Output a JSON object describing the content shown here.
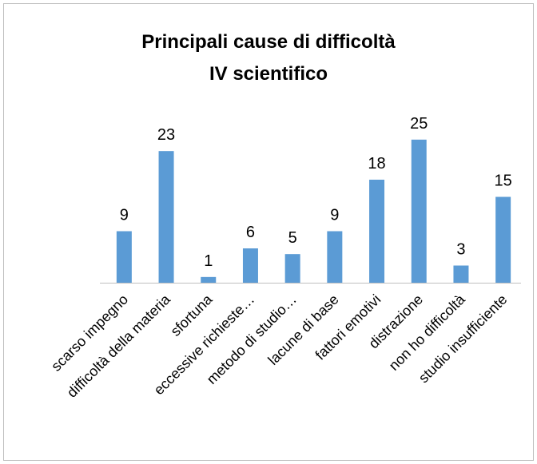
{
  "chart_data": {
    "type": "bar",
    "title": "Principali cause di difficoltà",
    "subtitle": "IV scientifico",
    "categories": [
      "scarso impegno",
      "difficoltà della materia",
      "sfortuna",
      "eccessive richieste…",
      "metodo di studio…",
      "lacune di base",
      "fattori emotivi",
      "distrazione",
      "non ho difficoltà",
      "studio insufficiente"
    ],
    "values": [
      9,
      23,
      1,
      6,
      5,
      9,
      18,
      25,
      3,
      15
    ],
    "color": "#5b9bd5",
    "ylim": [
      0,
      30
    ]
  }
}
